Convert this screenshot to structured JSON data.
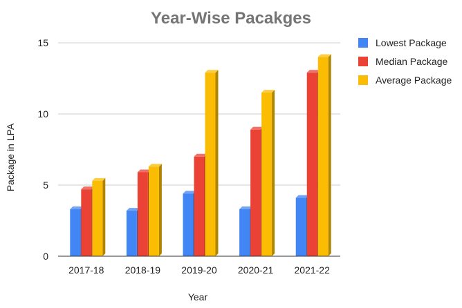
{
  "chart_data": {
    "type": "bar",
    "title": "Year-Wise Pacakges",
    "xlabel": "Year",
    "ylabel": "Package in LPA",
    "categories": [
      "2017-18",
      "2018-19",
      "2019-20",
      "2020-21",
      "2021-22"
    ],
    "series": [
      {
        "name": "Lowest Package",
        "color": "#4285F4",
        "values": [
          3.3,
          3.2,
          4.4,
          3.3,
          4.1
        ]
      },
      {
        "name": "Median Package",
        "color": "#EA4335",
        "values": [
          4.7,
          5.9,
          7.0,
          8.9,
          12.9
        ]
      },
      {
        "name": "Average Package",
        "color": "#FBBC04",
        "values": [
          5.3,
          6.3,
          12.9,
          11.5,
          14.0
        ]
      }
    ],
    "ylim": [
      0,
      15
    ],
    "yticks": [
      0,
      5,
      10,
      15
    ],
    "grid": true,
    "legend": "right",
    "style": "3d-bar"
  }
}
